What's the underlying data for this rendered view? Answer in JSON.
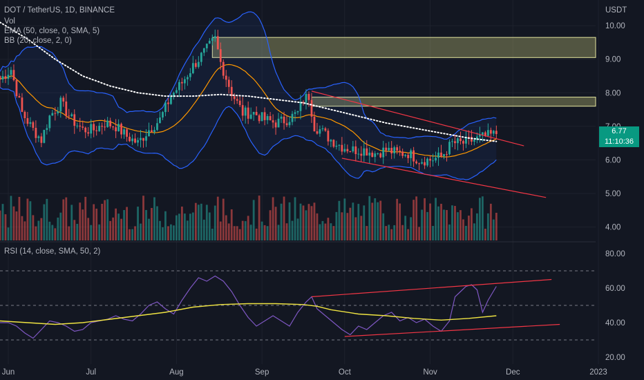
{
  "header": {
    "symbol": "DOT / TetherUS, 1D, BINANCE",
    "vol": "Vol",
    "ema": "EMA (50, close, 0, SMA, 5)",
    "bb": "BB (20, close, 2, 0)",
    "rsi": "RSI (14, close, SMA, 50, 2)",
    "currency": "USDT"
  },
  "last_price": {
    "value": "6.77",
    "countdown": "11:10:36",
    "color": "#089981"
  },
  "colors": {
    "background": "#131722",
    "up": "#26a69a",
    "down": "#ef5350",
    "bb": "#2962ff",
    "ema": "#ffffff",
    "basis": "#ff9800",
    "zone": "#c9c97a",
    "rsi": "#7e57c2",
    "rsi_ma": "#f0e442",
    "trend": "#f23645"
  },
  "chart_data": [
    {
      "type": "candlestick",
      "title": "DOT / TetherUS, 1D, BINANCE",
      "ylabel": "USDT",
      "ylim": [
        3.6,
        10.6
      ],
      "y_ticks": [
        "4.00",
        "5.00",
        "6.00",
        "7.00",
        "8.00",
        "9.00",
        "10.00"
      ],
      "x_ticks": [
        "Jun",
        "Jul",
        "Aug",
        "Sep",
        "Oct",
        "Nov",
        "Dec",
        "2023"
      ],
      "x_range_days": [
        0,
        216
      ],
      "x_tick_days": [
        3,
        33,
        64,
        95,
        125,
        156,
        186,
        217
      ],
      "close_anchors": [
        [
          0,
          8.4
        ],
        [
          4,
          8.7
        ],
        [
          8,
          7.4
        ],
        [
          12,
          6.9
        ],
        [
          15,
          6.6
        ],
        [
          18,
          7.3
        ],
        [
          22,
          7.7
        ],
        [
          26,
          7.2
        ],
        [
          30,
          6.9
        ],
        [
          34,
          6.9
        ],
        [
          38,
          7.1
        ],
        [
          42,
          7.0
        ],
        [
          46,
          6.7
        ],
        [
          50,
          6.5
        ],
        [
          54,
          6.9
        ],
        [
          58,
          7.2
        ],
        [
          62,
          7.9
        ],
        [
          66,
          8.3
        ],
        [
          70,
          8.8
        ],
        [
          74,
          9.2
        ],
        [
          76,
          9.4
        ],
        [
          78,
          9.6
        ],
        [
          80,
          8.9
        ],
        [
          84,
          8.0
        ],
        [
          88,
          7.4
        ],
        [
          92,
          7.4
        ],
        [
          96,
          7.2
        ],
        [
          100,
          7.1
        ],
        [
          104,
          7.2
        ],
        [
          108,
          7.4
        ],
        [
          110,
          7.8
        ],
        [
          112,
          7.9
        ],
        [
          114,
          7.0
        ],
        [
          116,
          6.9
        ],
        [
          120,
          6.6
        ],
        [
          124,
          6.4
        ],
        [
          128,
          6.3
        ],
        [
          132,
          6.3
        ],
        [
          136,
          6.2
        ],
        [
          140,
          6.3
        ],
        [
          144,
          6.2
        ],
        [
          148,
          6.2
        ],
        [
          152,
          6.0
        ],
        [
          156,
          6.0
        ],
        [
          160,
          6.1
        ],
        [
          164,
          6.5
        ],
        [
          168,
          6.5
        ],
        [
          172,
          6.6
        ],
        [
          176,
          6.7
        ],
        [
          180,
          6.77
        ]
      ],
      "ema50_anchors": [
        [
          0,
          10.1
        ],
        [
          10,
          9.6
        ],
        [
          20,
          9.0
        ],
        [
          30,
          8.5
        ],
        [
          40,
          8.2
        ],
        [
          50,
          8.0
        ],
        [
          60,
          7.9
        ],
        [
          70,
          7.9
        ],
        [
          80,
          7.95
        ],
        [
          90,
          7.9
        ],
        [
          100,
          7.8
        ],
        [
          110,
          7.7
        ],
        [
          120,
          7.5
        ],
        [
          130,
          7.3
        ],
        [
          140,
          7.1
        ],
        [
          150,
          6.95
        ],
        [
          160,
          6.8
        ],
        [
          170,
          6.65
        ],
        [
          180,
          6.55
        ]
      ],
      "resistance_zones": [
        {
          "from_day": 77,
          "to_day": 216,
          "low": 9.05,
          "high": 9.65
        },
        {
          "from_day": 113,
          "to_day": 216,
          "low": 7.6,
          "high": 7.87
        }
      ],
      "trendlines": [
        {
          "from": [
            113,
            8.05
          ],
          "to": [
            190,
            6.42
          ]
        },
        {
          "from": [
            124,
            6.05
          ],
          "to": [
            198,
            4.88
          ]
        }
      ],
      "volume_relative_max": 1.0
    },
    {
      "type": "line",
      "title": "RSI (14, close, SMA, 50, 2)",
      "ylim": [
        16,
        86
      ],
      "y_ticks": [
        "20.00",
        "40.00",
        "60.00",
        "80.00"
      ],
      "bands": [
        30,
        50,
        70
      ],
      "series": [
        {
          "values": [
            [
              0,
              40
            ],
            [
              3,
              40
            ],
            [
              6,
              38
            ],
            [
              9,
              34
            ],
            [
              12,
              31
            ],
            [
              15,
              36
            ],
            [
              18,
              41
            ],
            [
              21,
              40
            ],
            [
              24,
              38
            ],
            [
              27,
              35
            ],
            [
              30,
              36
            ],
            [
              33,
              40
            ],
            [
              36,
              41
            ],
            [
              39,
              42
            ],
            [
              42,
              44
            ],
            [
              45,
              42
            ],
            [
              48,
              41
            ],
            [
              51,
              45
            ],
            [
              54,
              50
            ],
            [
              57,
              52
            ],
            [
              60,
              48
            ],
            [
              63,
              45
            ],
            [
              66,
              53
            ],
            [
              69,
              60
            ],
            [
              72,
              66
            ],
            [
              75,
              64
            ],
            [
              78,
              67
            ],
            [
              81,
              64
            ],
            [
              84,
              58
            ],
            [
              87,
              50
            ],
            [
              90,
              43
            ],
            [
              93,
              38
            ],
            [
              96,
              41
            ],
            [
              99,
              44
            ],
            [
              102,
              41
            ],
            [
              105,
              38
            ],
            [
              108,
              46
            ],
            [
              111,
              52
            ],
            [
              113,
              55
            ],
            [
              115,
              48
            ],
            [
              118,
              44
            ],
            [
              121,
              40
            ],
            [
              124,
              36
            ],
            [
              127,
              33
            ],
            [
              130,
              38
            ],
            [
              133,
              36
            ],
            [
              136,
              40
            ],
            [
              139,
              44
            ],
            [
              142,
              46
            ],
            [
              145,
              41
            ],
            [
              148,
              43
            ],
            [
              151,
              40
            ],
            [
              154,
              42
            ],
            [
              157,
              38
            ],
            [
              160,
              35
            ],
            [
              163,
              41
            ],
            [
              165,
              55
            ],
            [
              167,
              58
            ],
            [
              169,
              61
            ],
            [
              171,
              62
            ],
            [
              173,
              59
            ],
            [
              175,
              46
            ],
            [
              177,
              53
            ],
            [
              180,
              61
            ]
          ]
        },
        {
          "values": [
            [
              0,
              41
            ],
            [
              10,
              40
            ],
            [
              20,
              39
            ],
            [
              30,
              40
            ],
            [
              40,
              42
            ],
            [
              50,
              44
            ],
            [
              60,
              46
            ],
            [
              70,
              49
            ],
            [
              80,
              50.5
            ],
            [
              90,
              51
            ],
            [
              100,
              51
            ],
            [
              110,
              50.5
            ],
            [
              115,
              49.5
            ],
            [
              120,
              47.5
            ],
            [
              130,
              45
            ],
            [
              140,
              44
            ],
            [
              150,
              42.5
            ],
            [
              160,
              41.5
            ],
            [
              170,
              42.5
            ],
            [
              180,
              44
            ]
          ]
        }
      ],
      "trendlines": [
        {
          "from": [
            113,
            55
          ],
          "to": [
            200,
            65
          ]
        },
        {
          "from": [
            125,
            32
          ],
          "to": [
            203,
            39
          ]
        }
      ]
    }
  ]
}
